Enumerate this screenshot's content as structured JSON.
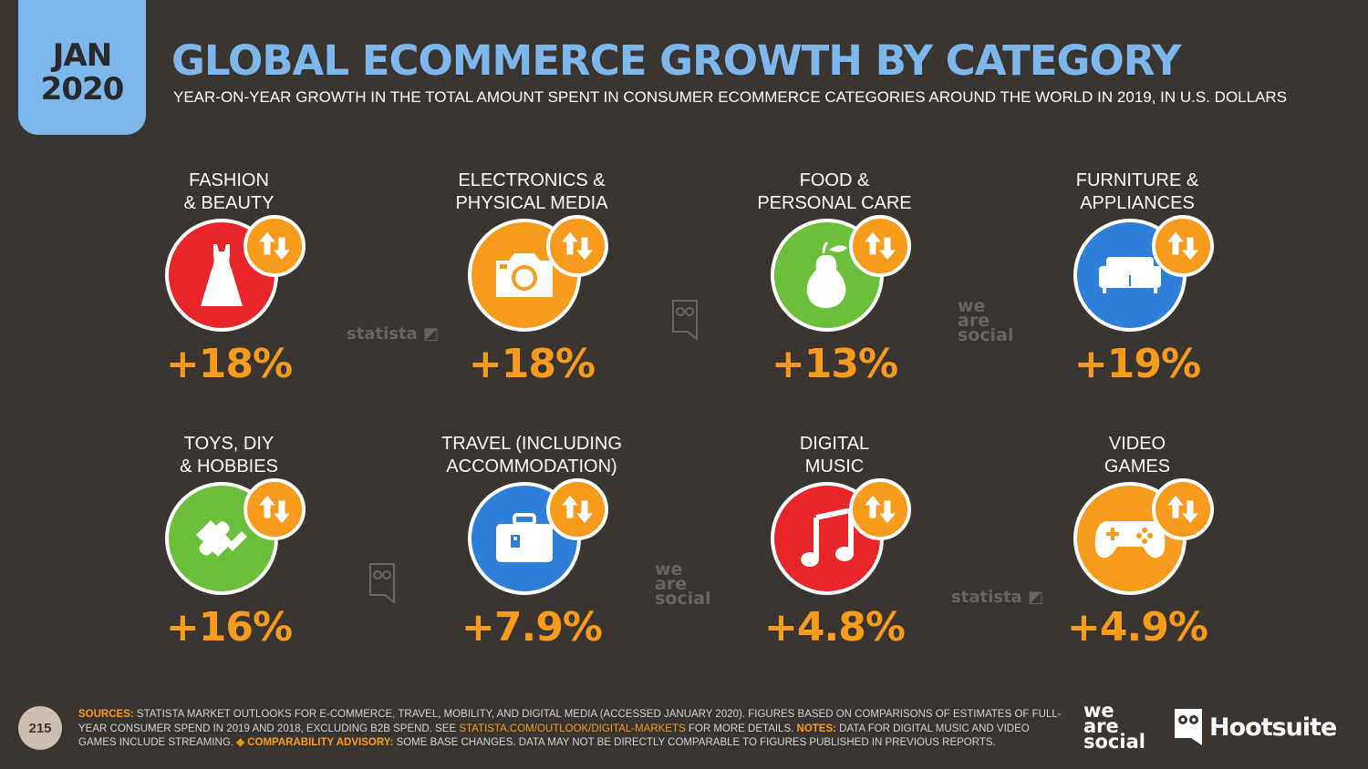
{
  "header": {
    "month": "JAN",
    "year": "2020",
    "title": "GLOBAL ECOMMERCE GROWTH BY CATEGORY",
    "subtitle": "YEAR-ON-YEAR GROWTH IN THE TOTAL AMOUNT SPENT IN CONSUMER ECOMMERCE CATEGORIES AROUND THE WORLD IN 2019, IN U.S. DOLLARS"
  },
  "categories": [
    {
      "label": "FASHION\n& BEAUTY",
      "value": "+18%",
      "color": "#e8262a",
      "icon": "dress-icon"
    },
    {
      "label": "ELECTRONICS &\nPHYSICAL MEDIA",
      "value": "+18%",
      "color": "#f79b1c",
      "icon": "camera-icon"
    },
    {
      "label": "FOOD &\nPERSONAL CARE",
      "value": "+13%",
      "color": "#6cbf3a",
      "icon": "pear-icon"
    },
    {
      "label": "FURNITURE &\nAPPLIANCES",
      "value": "+19%",
      "color": "#2d7fd8",
      "icon": "sofa-icon"
    },
    {
      "label": "TOYS, DIY\n& HOBBIES",
      "value": "+16%",
      "color": "#6cbf3a",
      "icon": "puzzle-icon"
    },
    {
      "label": "TRAVEL (INCLUDING\nACCOMMODATION)",
      "value": "+7.9%",
      "color": "#2d7fd8",
      "icon": "suitcase-icon"
    },
    {
      "label": "DIGITAL\nMUSIC",
      "value": "+4.8%",
      "color": "#e8262a",
      "icon": "music-note-icon"
    },
    {
      "label": "VIDEO\nGAMES",
      "value": "+4.9%",
      "color": "#f79b1c",
      "icon": "gamepad-icon"
    }
  ],
  "watermarks": {
    "statista": "statista",
    "we": "we",
    "are": "are",
    "social": "social"
  },
  "footer": {
    "sources_label": "SOURCES:",
    "sources_text": " STATISTA MARKET OUTLOOKS FOR E-COMMERCE, TRAVEL, MOBILITY, AND DIGITAL MEDIA (ACCESSED JANUARY 2020). FIGURES BASED ON COMPARISONS OF ESTIMATES OF FULL-YEAR CONSUMER SPEND IN 2019 AND 2018, EXCLUDING B2B SPEND. SEE ",
    "link": "STATISTA.COM/OUTLOOK/DIGITAL-MARKETS",
    "after_link": " FOR MORE DETAILS. ",
    "notes_label": "NOTES:",
    "notes_text": " DATA FOR DIGITAL MUSIC AND VIDEO GAMES INCLUDE STREAMING. ",
    "advisory_label": "◈ COMPARABILITY ADVISORY:",
    "advisory_text": " SOME BASE CHANGES. DATA MAY NOT BE DIRECTLY COMPARABLE TO FIGURES PUBLISHED IN PREVIOUS REPORTS.",
    "page_number": "215"
  },
  "logos": {
    "we": "we",
    "are": "are",
    "social": "social",
    "hootsuite": "Hootsuite"
  }
}
